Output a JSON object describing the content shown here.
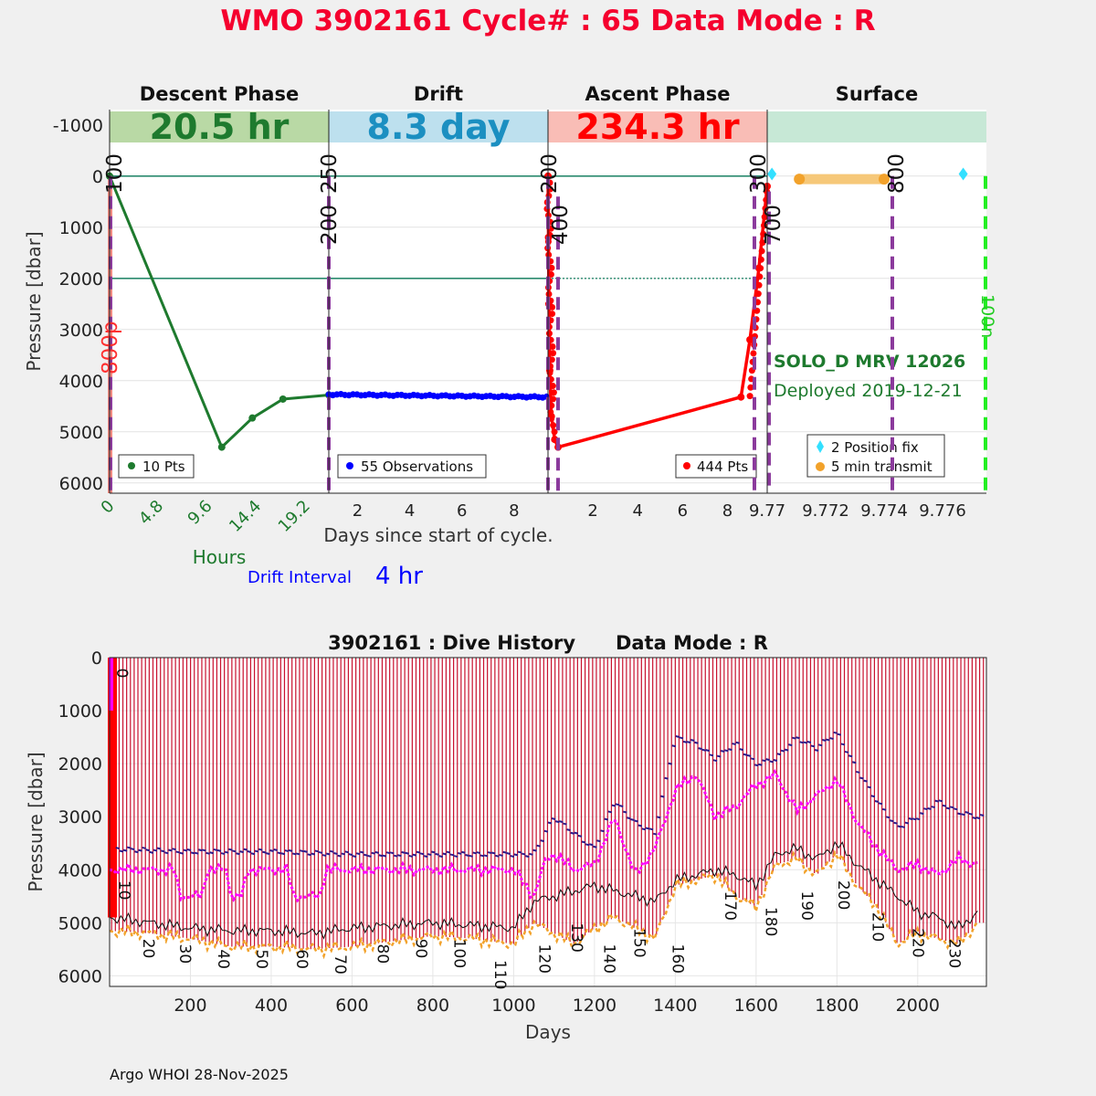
{
  "title": "WMO 3902161   Cycle# : 65   Data Mode : R",
  "footer": "Argo WHOI 28-Nov-2025",
  "colors": {
    "title": "#f5002e",
    "descent": "#1e7a2e",
    "drift": "#0000ff",
    "ascent": "#ff0000",
    "descent_band": "#b9d9a5",
    "drift_band": "#bde0ee",
    "ascent_band": "#f9bdb6",
    "surface_band": "#c7e8d6",
    "drift_band_text": "#1b8fc1",
    "purple": "#8b3a9c",
    "orange": "#f2a22b",
    "cyan": "#33e0ff",
    "magenta": "#ff00ff"
  },
  "chart_data": [
    {
      "type": "line",
      "name": "cycle-timeline",
      "ylabel": "Pressure [dbar]",
      "ylim": [
        -1300,
        6200
      ],
      "yticks": [
        -1000,
        0,
        1000,
        2000,
        3000,
        4000,
        5000,
        6000
      ],
      "ytick_labels": [
        "-1000",
        "0",
        "1000",
        "2000",
        "3000",
        "4000",
        "5000",
        "6000"
      ],
      "xlabel": "Days since start of cycle.",
      "xlabel_hours": "Hours",
      "drift_interval_label": "Drift Interval",
      "drift_interval_value": "4 hr",
      "phases": [
        {
          "name": "Descent Phase",
          "duration": "20.5 hr"
        },
        {
          "name": "Drift",
          "duration": "8.3 day"
        },
        {
          "name": "Ascent Phase",
          "duration": "234.3 hr"
        },
        {
          "name": "Surface",
          "duration": ""
        }
      ],
      "descent": {
        "xlim": [
          0,
          21.5
        ],
        "xticks": [
          0,
          4.8,
          9.6,
          14.4,
          19.2
        ],
        "xtick_labels": [
          "0",
          "4.8",
          "9.6",
          "14.4",
          "19.2"
        ],
        "hours": [
          0,
          11,
          14,
          17,
          21.5
        ],
        "pressure": [
          0,
          5300,
          4730,
          4360,
          4280
        ],
        "legend": "10 Pts"
      },
      "drift": {
        "xlim": [
          0.9,
          9.3
        ],
        "xticks": [
          2,
          4,
          6,
          8
        ],
        "xtick_labels": [
          "2",
          "4",
          "6",
          "8"
        ],
        "start_day": 0.9,
        "end_day": 9.25,
        "pressure_start": 4270,
        "pressure_end": 4320,
        "count": 55,
        "legend": "55 Observations"
      },
      "ascent": {
        "xlim": [
          0,
          9.77
        ],
        "xticks": [
          2,
          4,
          6,
          8,
          9.77
        ],
        "xtick_labels": [
          "2",
          "4",
          "6",
          "8",
          "9.77"
        ],
        "days": [
          0.0,
          0.02,
          0.04,
          0.08,
          0.15,
          0.3,
          0.45,
          8.6,
          9.0,
          9.4,
          9.77
        ],
        "pressure": [
          0,
          1200,
          2500,
          3800,
          4700,
          5150,
          5300,
          4320,
          3200,
          1800,
          200
        ],
        "legend": "444 Pts"
      },
      "surface": {
        "xlim": [
          9.77,
          9.7775
        ],
        "xticks": [
          9.772,
          9.774,
          9.776
        ],
        "xtick_labels": [
          "9.772",
          "9.774",
          "9.776"
        ],
        "position_fix_days": [
          9.7701,
          9.7767
        ],
        "transmit_days": [
          9.7711,
          9.774
        ],
        "transmit_pressure": 60,
        "legend_fix": "2 Position fix",
        "legend_transmit": "5 min transmit",
        "float_name": "SOLO_D MRV 12026",
        "deployed": "Deployed 2019-12-21"
      },
      "reference_lines": [
        0,
        2000
      ],
      "markers": [
        {
          "label": "100",
          "phase": "descent",
          "x": 0
        },
        {
          "label": "250",
          "phase": "drift",
          "x": 0.9
        },
        {
          "label": "200",
          "phase": "drift",
          "x": 0.9
        },
        {
          "label": "200",
          "phase": "ascent",
          "x": 0
        },
        {
          "label": "400",
          "phase": "ascent",
          "x": 0.35
        },
        {
          "label": "300",
          "phase": "ascent",
          "x": 9.7
        },
        {
          "label": "700",
          "phase": "surface",
          "x": 9.77
        },
        {
          "label": "800",
          "phase": "surface",
          "x": 9.774
        }
      ],
      "side_label_left": "800p",
      "side_label_right": "100n"
    },
    {
      "type": "line",
      "name": "dive-history",
      "title": "3902161 : Dive History      Data Mode : R",
      "xlabel": "Days",
      "ylabel": "Pressure [dbar]",
      "xlim": [
        0,
        2170
      ],
      "ylim": [
        0,
        6200
      ],
      "xticks": [
        200,
        400,
        600,
        800,
        1000,
        1200,
        1400,
        1600,
        1800,
        2000
      ],
      "xtick_labels": [
        "200",
        "400",
        "600",
        "800",
        "1000",
        "1200",
        "1400",
        "1600",
        "1800",
        "2000"
      ],
      "yticks": [
        0,
        1000,
        2000,
        3000,
        4000,
        5000,
        6000
      ],
      "ytick_labels": [
        "0",
        "1000",
        "2000",
        "3000",
        "4000",
        "5000",
        "6000"
      ],
      "cycle_labels": [
        "0",
        "10",
        "20",
        "30",
        "40",
        "50",
        "60",
        "70",
        "80",
        "90",
        "100",
        "110",
        "120",
        "130",
        "140",
        "150",
        "160",
        "170",
        "180",
        "190",
        "200",
        "210",
        "220",
        "230"
      ],
      "cycle_label_days": [
        5,
        10,
        70,
        160,
        255,
        350,
        450,
        545,
        650,
        745,
        840,
        940,
        1050,
        1130,
        1210,
        1285,
        1380,
        1510,
        1610,
        1700,
        1790,
        1875,
        1975,
        2065
      ],
      "cycle_label_pressure": [
        200,
        4200,
        5300,
        5400,
        5500,
        5500,
        5500,
        5600,
        5400,
        5300,
        5300,
        5700,
        5400,
        5000,
        5400,
        5100,
        5400,
        4400,
        4700,
        4400,
        4200,
        4800,
        5100,
        5300
      ],
      "bottom_pressure": {
        "days": [
          0,
          100,
          200,
          300,
          400,
          500,
          600,
          700,
          800,
          900,
          1000,
          1050,
          1100,
          1150,
          1200,
          1250,
          1300,
          1350,
          1400,
          1450,
          1500,
          1550,
          1600,
          1650,
          1700,
          1750,
          1800,
          1850,
          1900,
          1950,
          2000,
          2050,
          2100,
          2150
        ],
        "values": [
          4900,
          5000,
          5100,
          5150,
          5150,
          5200,
          5100,
          5050,
          5000,
          5050,
          5100,
          4600,
          4500,
          4400,
          4300,
          4400,
          4500,
          4600,
          4200,
          4100,
          4000,
          4100,
          4300,
          3700,
          3600,
          3800,
          3500,
          3900,
          4200,
          4500,
          4800,
          4900,
          5100,
          4800
        ]
      },
      "max_pressure": {
        "days": [
          0,
          100,
          200,
          300,
          400,
          500,
          600,
          700,
          800,
          900,
          1000,
          1050,
          1100,
          1150,
          1200,
          1250,
          1300,
          1350,
          1400,
          1450,
          1500,
          1550,
          1600,
          1650,
          1700,
          1750,
          1800,
          1850,
          1900,
          1950,
          2000,
          2050,
          2100,
          2150
        ],
        "values": [
          5150,
          5200,
          5300,
          5450,
          5450,
          5500,
          5450,
          5350,
          5250,
          5300,
          5400,
          5000,
          5200,
          5400,
          5100,
          4900,
          5100,
          5300,
          4300,
          4200,
          4100,
          4500,
          4700,
          3900,
          3800,
          4100,
          3700,
          4300,
          4700,
          5400,
          5200,
          5300,
          5400,
          5000
        ]
      },
      "drift_pressure": {
        "days": [
          0,
          30,
          160,
          175,
          230,
          240,
          290,
          300,
          330,
          340,
          440,
          455,
          520,
          535,
          1000,
          1050,
          1080,
          1100,
          1150,
          1200,
          1250,
          1300,
          1350,
          1400,
          1450,
          1500,
          1550,
          1600,
          1650,
          1700,
          1750,
          1800,
          1850,
          1900,
          1950,
          2000,
          2050,
          2100,
          2150
        ],
        "values": [
          4000,
          4000,
          4000,
          4500,
          4500,
          4000,
          4000,
          4500,
          4500,
          4000,
          4000,
          4500,
          4500,
          4000,
          4000,
          4500,
          3800,
          3700,
          4000,
          3900,
          3000,
          4100,
          3600,
          2500,
          2200,
          3000,
          2800,
          2400,
          2200,
          2900,
          2600,
          2300,
          3100,
          3600,
          4000,
          3900,
          4100,
          3800,
          3900
        ]
      },
      "park_pressure": {
        "days": [
          0,
          200,
          400,
          600,
          800,
          1000,
          1050,
          1100,
          1150,
          1200,
          1250,
          1300,
          1350,
          1400,
          1450,
          1500,
          1550,
          1600,
          1650,
          1700,
          1750,
          1800,
          1850,
          1900,
          1950,
          2000,
          2050,
          2100,
          2150
        ],
        "values": [
          3600,
          3650,
          3650,
          3700,
          3700,
          3700,
          3700,
          3000,
          3300,
          3600,
          2700,
          3100,
          3300,
          1500,
          1600,
          1900,
          1600,
          2000,
          1900,
          1500,
          1700,
          1400,
          2100,
          2700,
          3200,
          3000,
          2700,
          2900,
          3000
        ]
      }
    }
  ]
}
